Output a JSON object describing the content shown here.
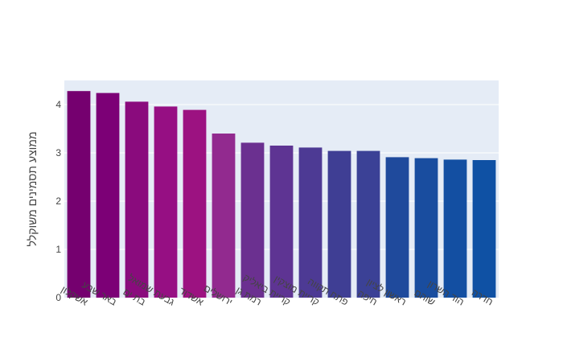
{
  "chart_data": {
    "type": "bar",
    "title": "",
    "xlabel": "",
    "ylabel": "ממוצע תסמינים משוקלל",
    "ylim": [
      0,
      4.5
    ],
    "yticks": [
      0,
      1,
      2,
      3,
      4
    ],
    "grid": true,
    "categories": [
      "אשקלון",
      "באר שבע",
      "בת ים",
      "גבעת שמואל",
      "אשדוד",
      "ירושלים",
      "רמת גן",
      "קריית ביאליק",
      "קריית מוצקין",
      "פתח תקווה",
      "חיפה",
      "ראשון לציון",
      "שוהם",
      "הוד השרון",
      "חדרה"
    ],
    "series": [
      {
        "values": [
          4.28,
          4.24,
          4.06,
          3.96,
          3.89,
          3.4,
          3.21,
          3.15,
          3.11,
          3.04,
          3.04,
          2.91,
          2.89,
          2.86,
          2.85
        ],
        "colors": [
          "#75006f",
          "#7c0076",
          "#8a0b7d",
          "#960f83",
          "#9c1281",
          "#922a8f",
          "#6b3090",
          "#5e3493",
          "#4d3a94",
          "#3f3e94",
          "#3b4196",
          "#1f4a9c",
          "#194d9f",
          "#134fa2",
          "#0f51a4"
        ]
      }
    ]
  },
  "colors": {
    "plot_bg": "#e5ecf6",
    "gridline": "#ffffff",
    "text": "#444444"
  }
}
